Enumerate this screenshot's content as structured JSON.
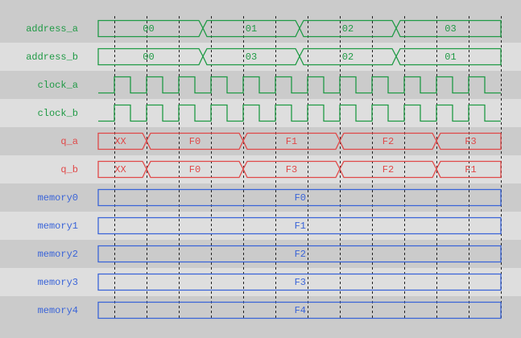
{
  "colors": {
    "band_dark": "#cbcbcb",
    "band_light": "#dedede",
    "green": "#1f9a45",
    "red": "#e04848",
    "blue": "#3a64d8",
    "grid": "#222222"
  },
  "time": {
    "start": 0,
    "end": 12.5,
    "grid": [
      0.5,
      1.5,
      2.5,
      3.5,
      4.5,
      5.5,
      6.5,
      7.5,
      8.5,
      9.5,
      10.5,
      11.5,
      12.5
    ]
  },
  "signals": [
    {
      "name": "address_a",
      "color": "green",
      "type": "bus",
      "segments": [
        {
          "from": 0,
          "to": 3.25,
          "value": "00"
        },
        {
          "from": 3.25,
          "to": 6.25,
          "value": "01"
        },
        {
          "from": 6.25,
          "to": 9.25,
          "value": "02"
        },
        {
          "from": 9.25,
          "to": 12.5,
          "value": "03"
        }
      ]
    },
    {
      "name": "address_b",
      "color": "green",
      "type": "bus",
      "segments": [
        {
          "from": 0,
          "to": 3.25,
          "value": "00"
        },
        {
          "from": 3.25,
          "to": 6.25,
          "value": "03"
        },
        {
          "from": 6.25,
          "to": 9.25,
          "value": "02"
        },
        {
          "from": 9.25,
          "to": 12.5,
          "value": "01"
        }
      ]
    },
    {
      "name": "clock_a",
      "color": "green",
      "type": "clock",
      "period": 1,
      "first_rise": 0.5,
      "high": 0.5
    },
    {
      "name": "clock_b",
      "color": "green",
      "type": "clock",
      "period": 1,
      "first_rise": 0.5,
      "high": 0.5
    },
    {
      "name": "q_a",
      "color": "red",
      "type": "bus",
      "segments": [
        {
          "from": 0,
          "to": 1.5,
          "value": "XX"
        },
        {
          "from": 1.5,
          "to": 4.5,
          "value": "F0"
        },
        {
          "from": 4.5,
          "to": 7.5,
          "value": "F1"
        },
        {
          "from": 7.5,
          "to": 10.5,
          "value": "F2"
        },
        {
          "from": 10.5,
          "to": 12.5,
          "value": "F3"
        }
      ]
    },
    {
      "name": "q_b",
      "color": "red",
      "type": "bus",
      "segments": [
        {
          "from": 0,
          "to": 1.5,
          "value": "XX"
        },
        {
          "from": 1.5,
          "to": 4.5,
          "value": "F0"
        },
        {
          "from": 4.5,
          "to": 7.5,
          "value": "F3"
        },
        {
          "from": 7.5,
          "to": 10.5,
          "value": "F2"
        },
        {
          "from": 10.5,
          "to": 12.5,
          "value": "F1"
        }
      ]
    },
    {
      "name": "memory0",
      "color": "blue",
      "type": "bus",
      "segments": [
        {
          "from": 0,
          "to": 12.5,
          "value": "F0"
        }
      ]
    },
    {
      "name": "memory1",
      "color": "blue",
      "type": "bus",
      "segments": [
        {
          "from": 0,
          "to": 12.5,
          "value": "F1"
        }
      ]
    },
    {
      "name": "memory2",
      "color": "blue",
      "type": "bus",
      "segments": [
        {
          "from": 0,
          "to": 12.5,
          "value": "F2"
        }
      ]
    },
    {
      "name": "memory3",
      "color": "blue",
      "type": "bus",
      "segments": [
        {
          "from": 0,
          "to": 12.5,
          "value": "F3"
        }
      ]
    },
    {
      "name": "memory4",
      "color": "blue",
      "type": "bus",
      "segments": [
        {
          "from": 0,
          "to": 12.5,
          "value": "F4"
        }
      ]
    }
  ]
}
